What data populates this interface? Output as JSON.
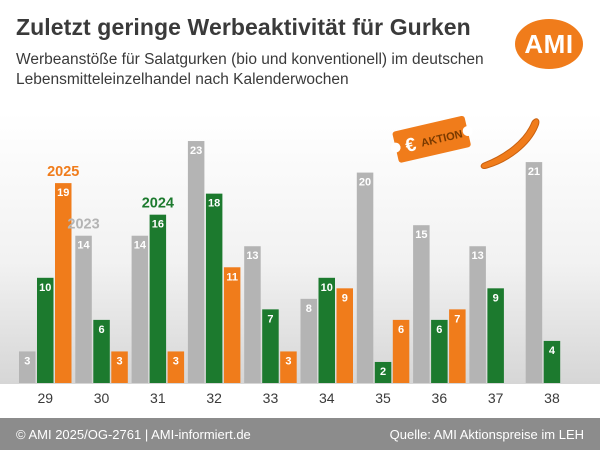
{
  "header": {
    "title": "Zuletzt geringe Werbeaktivität für Gurken",
    "subtitle": "Werbeanstöße für Salatgurken (bio und konventionell) im deutschen Lebensmitteleinzelhandel nach Kalenderwochen",
    "logo": "AMI"
  },
  "badge": {
    "currency": "€",
    "label": "AKTION",
    "icon": "cucumber-icon",
    "color": "#f07c1b"
  },
  "footer": {
    "copyright": "© AMI 2025/OG-2761 | AMI-informiert.de",
    "source": "Quelle: AMI Aktionspreise im LEH"
  },
  "chart_data": {
    "type": "bar",
    "title": "Zuletzt geringe Werbeaktivität für Gurken",
    "xlabel": "",
    "ylabel": "",
    "categories": [
      "29",
      "30",
      "31",
      "32",
      "33",
      "34",
      "35",
      "36",
      "37",
      "38"
    ],
    "series": [
      {
        "name": "2023",
        "color": "#b4b4b4",
        "values": [
          3,
          14,
          14,
          23,
          13,
          8,
          20,
          15,
          13,
          21
        ]
      },
      {
        "name": "2024",
        "color": "#1c7a2e",
        "values": [
          10,
          6,
          16,
          18,
          7,
          10,
          2,
          6,
          9,
          4
        ]
      },
      {
        "name": "2025",
        "color": "#f07c1b",
        "values": [
          19,
          3,
          3,
          11,
          3,
          9,
          6,
          7,
          null,
          null
        ]
      }
    ],
    "ylim": [
      0,
      25
    ],
    "grid": false,
    "legend": "inline-above-bars"
  }
}
